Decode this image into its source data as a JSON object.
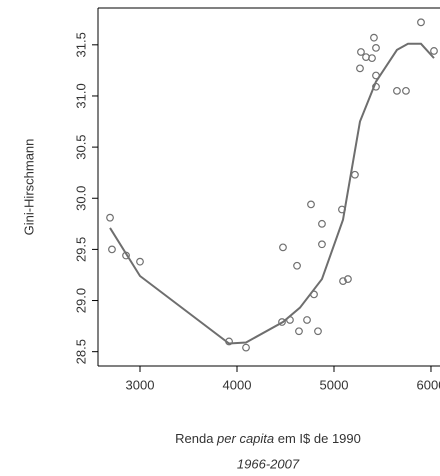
{
  "chart_data": {
    "type": "scatter",
    "ylabel": "Gini-Hirschmann",
    "xlabel_parts": [
      "Renda ",
      "per capita",
      " em I$ de 1990"
    ],
    "subtitle": "1966-2007",
    "point_color": "#707070",
    "line_color": "#6e6e6e",
    "x": [
      2691,
      2711,
      2856,
      3000,
      3918,
      4093,
      4464,
      4474,
      4546,
      4619,
      4639,
      4722,
      4763,
      4794,
      4835,
      4876,
      4876,
      5082,
      5093,
      5144,
      5216,
      5268,
      5278,
      5330,
      5392,
      5412,
      5433,
      5433,
      5433,
      5649,
      5742,
      5897,
      6031
    ],
    "y": [
      29.81,
      29.5,
      29.44,
      29.38,
      28.6,
      28.54,
      28.79,
      29.52,
      28.81,
      29.34,
      28.7,
      28.81,
      29.94,
      29.06,
      28.7,
      29.75,
      29.55,
      29.89,
      29.19,
      29.21,
      30.23,
      31.27,
      31.43,
      31.38,
      31.37,
      31.57,
      31.47,
      31.2,
      31.09,
      31.05,
      31.05,
      31.72,
      31.44
    ],
    "fit": {
      "x": [
        2691,
        3000,
        3918,
        4093,
        4474,
        4649,
        4876,
        5093,
        5268,
        5433,
        5649,
        5763,
        5897,
        6031
      ],
      "y": [
        29.71,
        29.24,
        28.58,
        28.59,
        28.79,
        28.93,
        29.21,
        29.79,
        30.75,
        31.14,
        31.45,
        31.51,
        31.51,
        31.37
      ]
    },
    "xlim": [
      2567,
      6093
    ],
    "ylim": [
      28.36,
      31.86
    ],
    "xticks": [
      3000,
      4000,
      5000,
      6000
    ],
    "yticks": [
      28.5,
      {
        "value": 29,
        "label": "29.0"
      },
      29.5,
      {
        "value": 30,
        "label": "30.0"
      },
      30.5,
      {
        "value": 31,
        "label": "31.0"
      },
      31.5
    ]
  }
}
